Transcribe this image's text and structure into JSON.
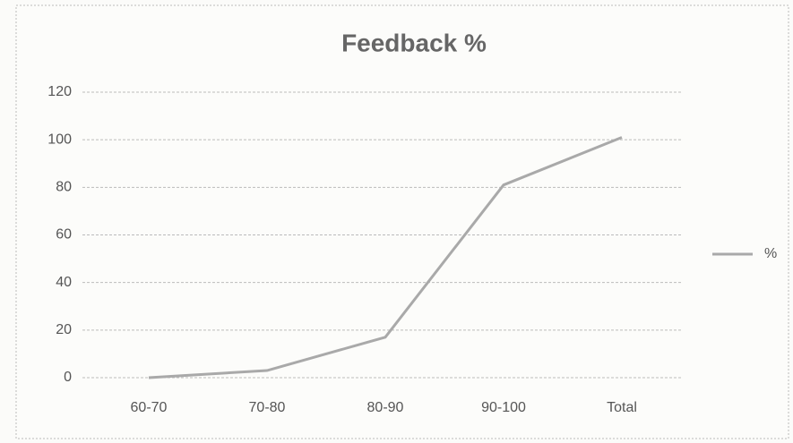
{
  "chart_data": {
    "type": "line",
    "title": "Feedback %",
    "categories": [
      "60-70",
      "70-80",
      "80-90",
      "90-100",
      "Total"
    ],
    "series": [
      {
        "name": "%",
        "color": "#a9a9a9",
        "values": [
          0,
          3,
          17,
          81,
          101
        ]
      }
    ],
    "ylim": [
      0,
      120
    ],
    "yticks": [
      0,
      20,
      40,
      60,
      80,
      100,
      120
    ],
    "grid": true,
    "legend": "right"
  }
}
